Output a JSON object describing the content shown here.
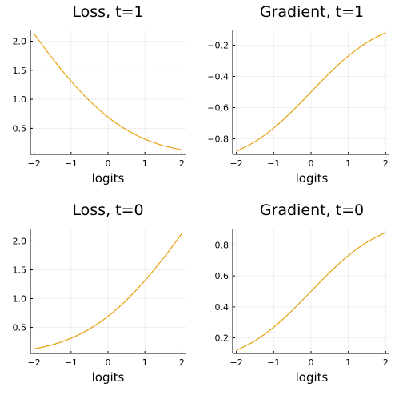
{
  "chart_data": [
    {
      "type": "line",
      "title": "Loss, t=1",
      "xlabel": "logits",
      "ylabel": "",
      "xlim": [
        -2.1,
        2.1
      ],
      "ylim": [
        0.05,
        2.2
      ],
      "xticks": [
        -2,
        -1,
        0,
        1,
        2
      ],
      "xtick_labels": [
        "−2",
        "−1",
        "0",
        "1",
        "2"
      ],
      "yticks": [
        0.5,
        1.0,
        1.5,
        2.0
      ],
      "ytick_labels": [
        "0.5",
        "1.0",
        "1.5",
        "2.0"
      ],
      "grid": true,
      "series": [
        {
          "color": "#e5a10f",
          "x": [
            -2,
            -1.5,
            -1,
            -0.5,
            0,
            0.5,
            1,
            1.5,
            2
          ],
          "y": [
            2.127,
            1.701,
            1.313,
            0.974,
            0.693,
            0.474,
            0.313,
            0.201,
            0.127
          ]
        }
      ]
    },
    {
      "type": "line",
      "title": "Gradient, t=1",
      "xlabel": "logits",
      "ylabel": "",
      "xlim": [
        -2.1,
        2.1
      ],
      "ylim": [
        -0.9,
        -0.1
      ],
      "xticks": [
        -2,
        -1,
        0,
        1,
        2
      ],
      "xtick_labels": [
        "−2",
        "−1",
        "0",
        "1",
        "2"
      ],
      "yticks": [
        -0.8,
        -0.6,
        -0.4,
        -0.2
      ],
      "ytick_labels": [
        "−0.8",
        "−0.6",
        "−0.4",
        "−0.2"
      ],
      "grid": true,
      "series": [
        {
          "color": "#e5a10f",
          "x": [
            -2,
            -1.5,
            -1,
            -0.5,
            0,
            0.5,
            1,
            1.5,
            2
          ],
          "y": [
            -0.881,
            -0.818,
            -0.731,
            -0.622,
            -0.5,
            -0.378,
            -0.269,
            -0.182,
            -0.119
          ]
        }
      ]
    },
    {
      "type": "line",
      "title": "Loss, t=0",
      "xlabel": "logits",
      "ylabel": "",
      "xlim": [
        -2.1,
        2.1
      ],
      "ylim": [
        0.05,
        2.2
      ],
      "xticks": [
        -2,
        -1,
        0,
        1,
        2
      ],
      "xtick_labels": [
        "−2",
        "−1",
        "0",
        "1",
        "2"
      ],
      "yticks": [
        0.5,
        1.0,
        1.5,
        2.0
      ],
      "ytick_labels": [
        "0.5",
        "1.0",
        "1.5",
        "2.0"
      ],
      "grid": true,
      "series": [
        {
          "color": "#e5a10f",
          "x": [
            -2,
            -1.5,
            -1,
            -0.5,
            0,
            0.5,
            1,
            1.5,
            2
          ],
          "y": [
            0.127,
            0.201,
            0.313,
            0.474,
            0.693,
            0.974,
            1.313,
            1.701,
            2.127
          ]
        }
      ]
    },
    {
      "type": "line",
      "title": "Gradient, t=0",
      "xlabel": "logits",
      "ylabel": "",
      "xlim": [
        -2.1,
        2.1
      ],
      "ylim": [
        0.1,
        0.9
      ],
      "xticks": [
        -2,
        -1,
        0,
        1,
        2
      ],
      "xtick_labels": [
        "−2",
        "−1",
        "0",
        "1",
        "2"
      ],
      "yticks": [
        0.2,
        0.4,
        0.6,
        0.8
      ],
      "ytick_labels": [
        "0.2",
        "0.4",
        "0.6",
        "0.8"
      ],
      "grid": true,
      "series": [
        {
          "color": "#e5a10f",
          "x": [
            -2,
            -1.5,
            -1,
            -0.5,
            0,
            0.5,
            1,
            1.5,
            2
          ],
          "y": [
            0.119,
            0.182,
            0.269,
            0.378,
            0.5,
            0.622,
            0.731,
            0.818,
            0.881
          ]
        }
      ]
    }
  ]
}
